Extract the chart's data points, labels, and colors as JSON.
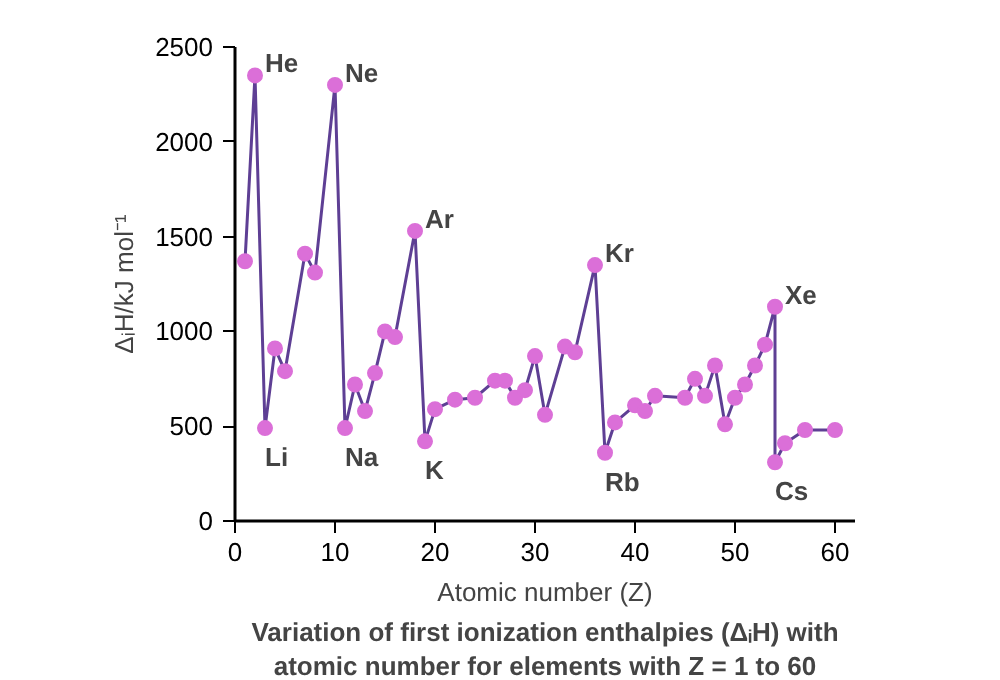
{
  "chart_data": {
    "type": "line",
    "title": "Variation of first ionization enthalpies (ΔᵢH) with\natomic number for elements with Z = 1 to 60",
    "xlabel": "Atomic number (Z)",
    "ylabel": "ΔᵢH/kJ mol⁻¹",
    "x": [
      1,
      2,
      3,
      4,
      5,
      7,
      8,
      10,
      11,
      12,
      13,
      14,
      15,
      16,
      18,
      19,
      20,
      22,
      24,
      26,
      27,
      28,
      29,
      30,
      31,
      33,
      34,
      36,
      37,
      38,
      40,
      41,
      42,
      45,
      46,
      47,
      48,
      49,
      50,
      51,
      52,
      53,
      54,
      54,
      55,
      57,
      60
    ],
    "series": [
      {
        "color": "#db6fd8",
        "values": [
          1370,
          2350,
          490,
          910,
          790,
          1410,
          1310,
          2300,
          490,
          720,
          580,
          780,
          1000,
          970,
          1530,
          420,
          590,
          640,
          650,
          740,
          740,
          650,
          690,
          870,
          560,
          920,
          890,
          1350,
          360,
          520,
          610,
          580,
          660,
          650,
          750,
          660,
          820,
          510,
          650,
          720,
          820,
          930,
          1130,
          310,
          410,
          480,
          480
        ]
      }
    ],
    "xlim": [
      0,
      62
    ],
    "ylim": [
      0,
      2500
    ],
    "xticks": [
      0,
      10,
      20,
      30,
      40,
      50,
      60
    ],
    "yticks": [
      0,
      500,
      1000,
      1500,
      2000,
      2500
    ],
    "marker": "circle",
    "line_style": "solid",
    "grid": false,
    "annotations": [
      {
        "text": "He",
        "x": 2,
        "y": 2350
      },
      {
        "text": "Li",
        "x": 3,
        "y": 490
      },
      {
        "text": "Ne",
        "x": 10,
        "y": 2300
      },
      {
        "text": "Na",
        "x": 11,
        "y": 490
      },
      {
        "text": "Ar",
        "x": 18,
        "y": 1530
      },
      {
        "text": "K",
        "x": 19,
        "y": 420
      },
      {
        "text": "Kr",
        "x": 36,
        "y": 1350
      },
      {
        "text": "Rb",
        "x": 37,
        "y": 360
      },
      {
        "text": "Xe",
        "x": 54,
        "y": 1130
      },
      {
        "text": "Cs",
        "x": 54,
        "y": 310
      }
    ]
  }
}
